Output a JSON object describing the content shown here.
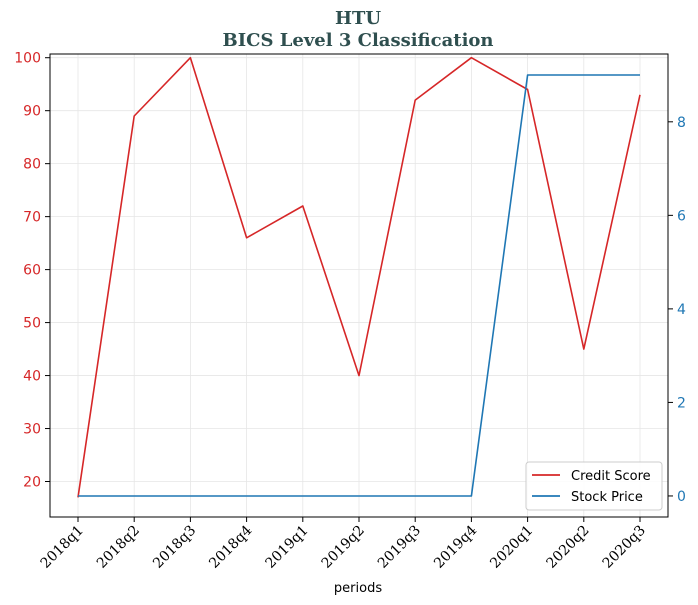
{
  "chart_data": {
    "type": "line",
    "title": "HTU",
    "subtitle": "BICS Level 3 Classification",
    "xlabel": "periods",
    "ylabel_left": "",
    "ylabel_right": "",
    "categories": [
      "2018q1",
      "2018q2",
      "2018q3",
      "2018q4",
      "2019q1",
      "2019q2",
      "2019q3",
      "2019q4",
      "2020q1",
      "2020q2",
      "2020q3"
    ],
    "ylim_left": [
      13.3,
      100.7
    ],
    "yticks_left": [
      20,
      30,
      40,
      50,
      60,
      70,
      80,
      90,
      100
    ],
    "ylim_right": [
      -0.45,
      9.45
    ],
    "yticks_right": [
      0,
      2,
      4,
      6,
      8
    ],
    "grid": true,
    "legend_position": "lower-right",
    "series": [
      {
        "name": "Credit Score",
        "axis": "left",
        "color": "#d62728",
        "values": [
          17,
          89,
          100,
          66,
          72,
          40,
          92,
          100,
          94,
          45,
          93
        ]
      },
      {
        "name": "Stock Price",
        "axis": "right",
        "color": "#1f77b4",
        "values": [
          0,
          0,
          0,
          0,
          0,
          0,
          0,
          0,
          9,
          9,
          9
        ]
      }
    ]
  }
}
